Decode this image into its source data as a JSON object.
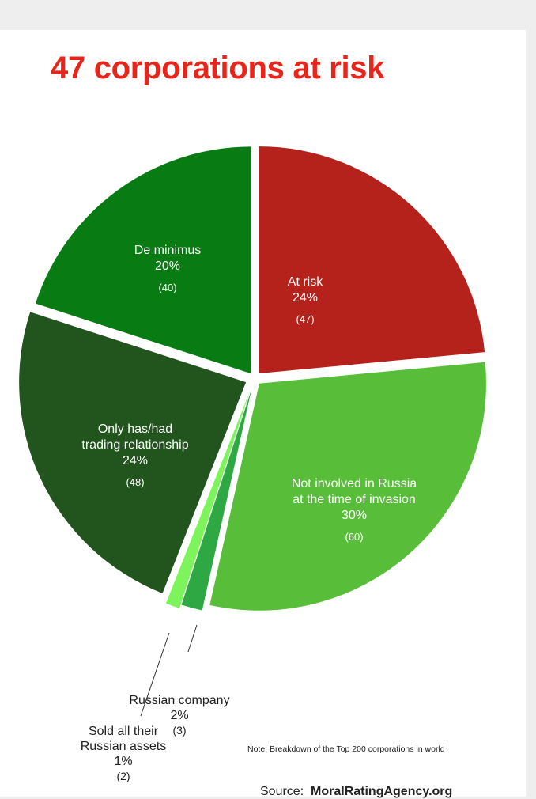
{
  "title": "47 corporations at risk",
  "note": "Note: Breakdown of the Top 200 corporations in world",
  "source": {
    "label": "Source:",
    "name": "MoralRatingAgency.org"
  },
  "chart_data": {
    "type": "pie",
    "title": "47 corporations at risk",
    "total": 200,
    "slices": [
      {
        "label": [
          "At risk"
        ],
        "percent": "24%",
        "count": "(47)",
        "value": 47,
        "color": "#b5221b"
      },
      {
        "label": [
          "Not involved in Russia",
          "at the time of invasion"
        ],
        "percent": "30%",
        "count": "(60)",
        "value": 60,
        "color": "#58be3a"
      },
      {
        "label": [
          "Russian company"
        ],
        "percent": "2%",
        "count": "(3)",
        "value": 3,
        "color": "#2ea843"
      },
      {
        "label": [
          "Sold all their",
          "Russian assets"
        ],
        "percent": "1%",
        "count": "(2)",
        "value": 2,
        "color": "#7ef45c"
      },
      {
        "label": [
          "Only has/had",
          "trading relationship"
        ],
        "percent": "24%",
        "count": "(48)",
        "value": 48,
        "color": "#22541e"
      },
      {
        "label": [
          "De minimus"
        ],
        "percent": "20%",
        "count": "(40)",
        "value": 40,
        "color": "#087c13"
      }
    ]
  }
}
